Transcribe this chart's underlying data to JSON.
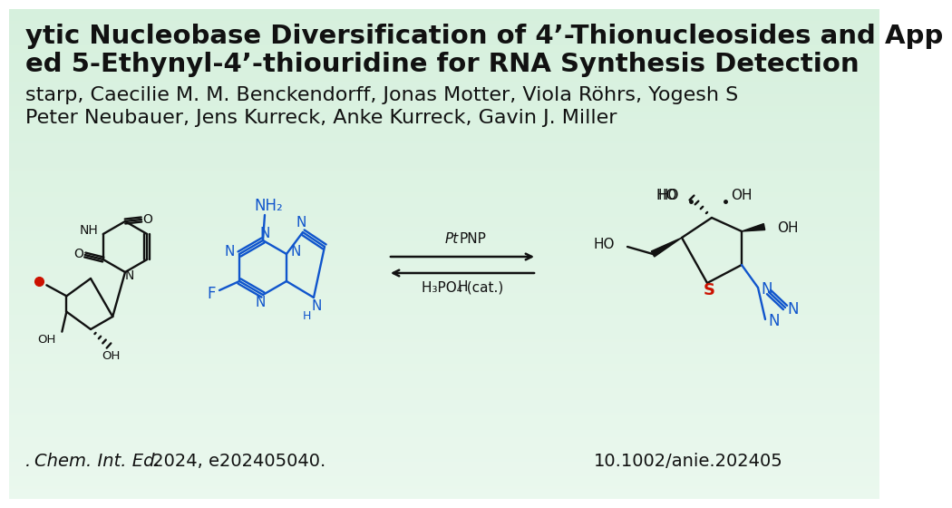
{
  "bg_color": "#dff0e4",
  "title_line1": "ytic Nucleobase Diversification of 4’-Thionucleosides and App",
  "title_line2": "ed 5-Ethynyl-4’-thiouridine for RNA Synthesis Detection",
  "authors_line1": "starp, Caecilie M. M. Benckendorff, Jonas Motter, Viola Röhrs, Yogesh S",
  "authors_line2": "Peter Neubauer, Jens Kurreck, Anke Kurreck, Gavin J. Miller",
  "journal_italic": "Chem. Int. Ed.",
  "journal_rest": " 2024, e202405040.",
  "journal_prefix": ". ",
  "doi_text": "10.1002/anie.202405",
  "title_fontsize": 21,
  "authors_fontsize": 16,
  "journal_fontsize": 14,
  "text_color": "#111111",
  "blue_color": "#1055CC",
  "red_color": "#CC1100",
  "black_color": "#111111"
}
